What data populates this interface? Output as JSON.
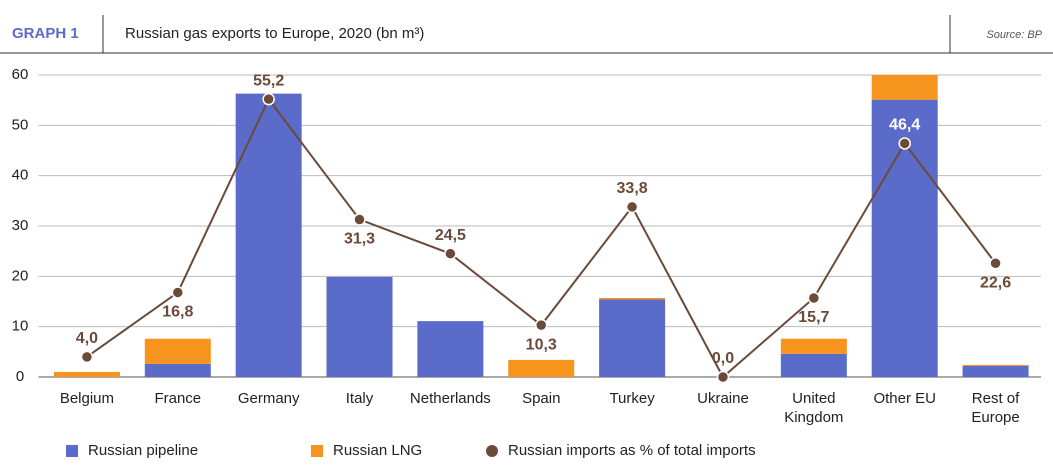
{
  "chart_data": {
    "type": "bar-line",
    "label": "GRAPH 1",
    "title": "Russian gas exports to Europe, 2020 (bn m³)",
    "source": "Source: BP",
    "categories": [
      "Belgium",
      "France",
      "Germany",
      "Italy",
      "Netherlands",
      "Spain",
      "Turkey",
      "Ukraine",
      "United\nKingdom",
      "Other EU",
      "Rest of\nEurope"
    ],
    "series": [
      {
        "name": "Russian pipeline",
        "color": "#5b6bc9",
        "kind": "bar",
        "values": [
          0,
          2.6,
          56.3,
          19.9,
          11.1,
          0,
          15.4,
          0,
          4.6,
          55.1,
          2.2
        ]
      },
      {
        "name": "Russian LNG",
        "color": "#f7941d",
        "kind": "bar",
        "values": [
          1.0,
          5.0,
          0,
          0,
          0,
          3.4,
          0.3,
          0,
          3.0,
          4.9,
          0.2
        ]
      },
      {
        "name": "Russian imports as % of total imports",
        "color": "#6b4a3a",
        "kind": "line",
        "values": [
          4.0,
          16.8,
          55.2,
          31.3,
          24.5,
          10.3,
          33.8,
          0.0,
          15.7,
          46.4,
          22.6
        ],
        "value_labels": [
          "4,0",
          "16,8",
          "55,2",
          "31,3",
          "24,5",
          "10,3",
          "33,8",
          "0,0",
          "15,7",
          "46,4",
          "22,6"
        ]
      }
    ],
    "ylim": [
      0,
      60
    ],
    "yticks": [
      0,
      10,
      20,
      30,
      40,
      50,
      60
    ],
    "grid": true
  }
}
